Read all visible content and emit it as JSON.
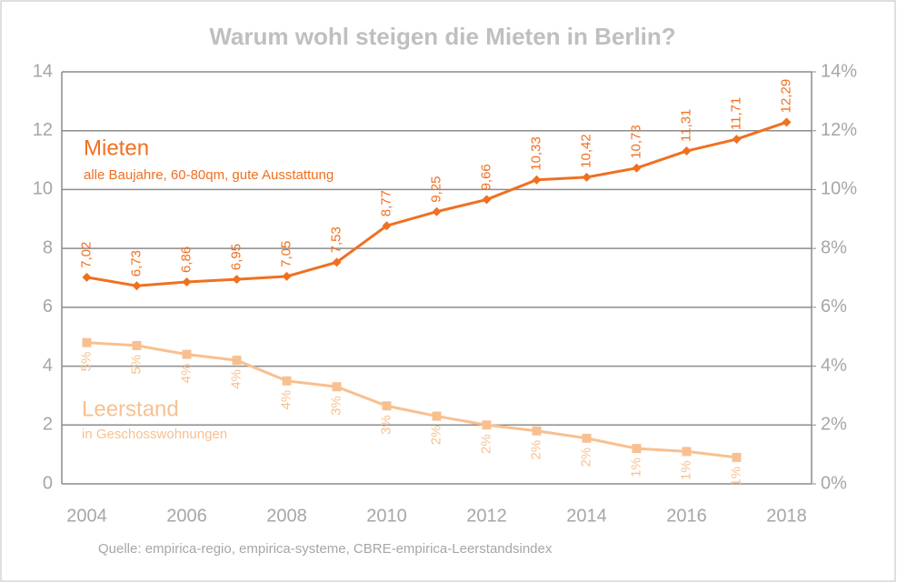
{
  "chart_data": {
    "type": "line",
    "title": "Warum wohl steigen die Mieten in Berlin?",
    "categories": [
      "2004",
      null,
      "2006",
      null,
      "2008",
      null,
      "2010",
      null,
      "2012",
      null,
      "2014",
      null,
      "2016",
      null,
      "2018"
    ],
    "series": [
      {
        "name": "Mieten",
        "color": "#f07020",
        "axis": "y",
        "values": [
          7.02,
          6.73,
          6.86,
          6.95,
          7.05,
          7.53,
          8.77,
          9.25,
          9.66,
          10.33,
          10.42,
          10.73,
          11.31,
          11.71,
          12.29
        ],
        "value_labels": [
          "7,02",
          "6,73",
          "6,86",
          "6,95",
          "7,05",
          "7,53",
          "8,77",
          "9,25",
          "9,66",
          "10,33",
          "10,42",
          "10,73",
          "11,31",
          "11,71",
          "12,29"
        ]
      },
      {
        "name": "Leerstand",
        "color": "#f8c090",
        "axis": "y2",
        "values": [
          4.8,
          4.7,
          4.4,
          4.2,
          3.5,
          3.3,
          2.65,
          2.3,
          2.0,
          1.8,
          1.55,
          1.2,
          1.1,
          0.9,
          null
        ],
        "value_labels": [
          "5%",
          "5%",
          "4%",
          "4%",
          "4%",
          "3%",
          "3%",
          "2%",
          "2%",
          "2%",
          "2%",
          "1%",
          "1%",
          "1%",
          null
        ]
      }
    ],
    "annotations": [
      "alle Baujahre, 60-80qm, gute Ausstattung",
      "in Geschosswohnungen"
    ],
    "source": "Quelle: empirica-regio, empirica-systeme, CBRE-empirica-Leerstandsindex",
    "ylim": [
      0,
      14
    ],
    "yticks": [
      0,
      2,
      4,
      6,
      8,
      10,
      12,
      14
    ],
    "y2lim": [
      0,
      14
    ],
    "y2ticks": [
      {
        "value": 0,
        "label": "0%"
      },
      {
        "value": 2,
        "label": "2%"
      },
      {
        "value": 4,
        "label": "4%"
      },
      {
        "value": 6,
        "label": "6%"
      },
      {
        "value": 8,
        "label": "8%"
      },
      {
        "value": 10,
        "label": "10%"
      },
      {
        "value": 12,
        "label": "12%"
      },
      {
        "value": 14,
        "label": "14%"
      }
    ],
    "grid": true
  }
}
